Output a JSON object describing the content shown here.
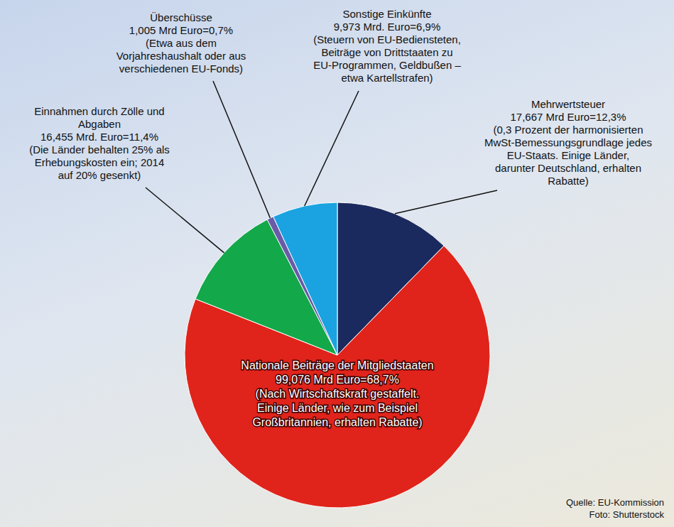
{
  "chart_data": {
    "type": "pie",
    "categories": [
      "Mehrwertsteuer",
      "Nationale Beiträge der Mitgliedstaaten",
      "Einnahmen durch Zölle und Abgaben",
      "Überschüsse",
      "Sonstige Einkünfte"
    ],
    "values": [
      12.3,
      68.7,
      11.4,
      0.7,
      6.9
    ],
    "value_labels": [
      "17,667 Mrd Euro=12,3%",
      "99,076 Mrd Euro=68,7%",
      "16,455 Mrd. Euro=11,4%",
      "1,005 Mrd Euro=0,7%",
      "9,973 Mrd. Euro=6,9%"
    ],
    "annotations": [
      "(0,3 Prozent der harmonisierten MwSt-Bemessungsgrundlage jedes EU-Staats. Einige Länder, darunter Deutschland, erhalten Rabatte)",
      "(Nach Wirtschaftskraft gestaffelt. Einige Länder, wie zum Beispiel Großbritannien, erhalten Rabatte)",
      "(Die Länder behalten 25% als Erhebungskosten ein; 2014 auf 20% gesenkt)",
      "(Etwa aus dem Vorjahreshaushalt oder aus verschiedenen EU-Fonds)",
      "(Steuern von EU-Bediensteten, Beiträge von Drittstaaten zu EU-Programmen, Geldbußen – etwa Kartellstrafen)"
    ],
    "colors": [
      "#1b2a5e",
      "#e0241b",
      "#13a84a",
      "#6a5aa8",
      "#1aa3e0"
    ],
    "data_labels": true,
    "source": "Quelle: EU-Kommission",
    "credit": "Foto: Shutterstock"
  }
}
